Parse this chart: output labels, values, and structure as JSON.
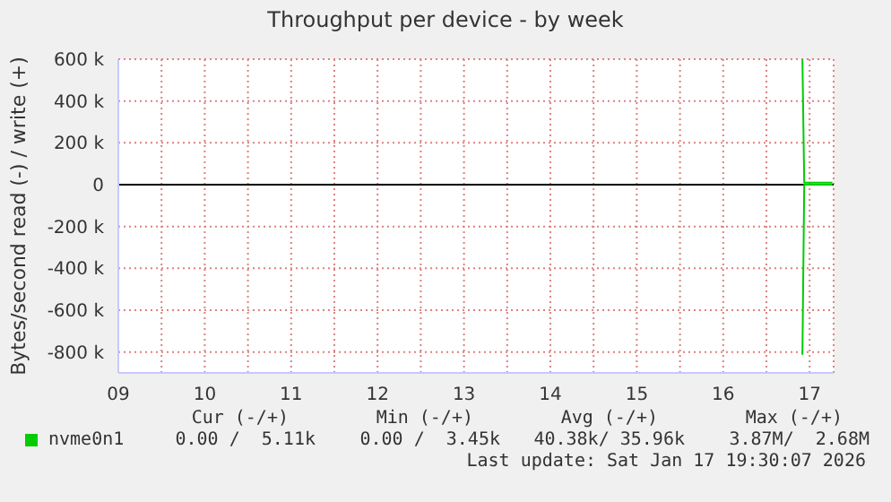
{
  "chart_data": {
    "type": "line",
    "title": "Throughput per device - by week",
    "ylabel": "Bytes/second read (-) / write (+)",
    "xlim": [
      "2026-01-09T00:00",
      "2026-01-17T06:40"
    ],
    "xticks": [
      {
        "value": "2026-01-09",
        "label": "09"
      },
      {
        "value": "2026-01-09T12:00",
        "label": null
      },
      {
        "value": "2026-01-10",
        "label": "10"
      },
      {
        "value": "2026-01-10T12:00",
        "label": null
      },
      {
        "value": "2026-01-11",
        "label": "11"
      },
      {
        "value": "2026-01-11T12:00",
        "label": null
      },
      {
        "value": "2026-01-12",
        "label": "12"
      },
      {
        "value": "2026-01-12T12:00",
        "label": null
      },
      {
        "value": "2026-01-13",
        "label": "13"
      },
      {
        "value": "2026-01-13T12:00",
        "label": null
      },
      {
        "value": "2026-01-14",
        "label": "14"
      },
      {
        "value": "2026-01-14T12:00",
        "label": null
      },
      {
        "value": "2026-01-15",
        "label": "15"
      },
      {
        "value": "2026-01-15T12:00",
        "label": null
      },
      {
        "value": "2026-01-16",
        "label": "16"
      },
      {
        "value": "2026-01-16T12:00",
        "label": null
      },
      {
        "value": "2026-01-17",
        "label": "17"
      }
    ],
    "ylim": [
      -900000,
      600000
    ],
    "yticks": [
      {
        "value": -800000,
        "label": "-800 k"
      },
      {
        "value": -600000,
        "label": "-600 k"
      },
      {
        "value": -400000,
        "label": "-400 k"
      },
      {
        "value": -200000,
        "label": "-200 k"
      },
      0,
      {
        "value": 200000,
        "label": "200 k"
      },
      {
        "value": 400000,
        "label": "400 k"
      },
      {
        "value": 600000,
        "label": "600 k"
      }
    ],
    "series": [
      {
        "name": "nvme0n1",
        "color": "#00cc00",
        "x": [
          "2026-01-16T21:50",
          "2026-01-16T22:00",
          "2026-01-16T22:30",
          "2026-01-17T02:00",
          "2026-01-17T05:30",
          "2026-01-17T06:20"
        ],
        "values": [
          600000,
          600000,
          10000,
          10000,
          10000,
          10000
        ]
      },
      {
        "color": "#00cc00",
        "x": [
          "2026-01-16T21:50",
          "2026-01-16T22:00",
          "2026-01-16T22:30",
          "2026-01-17T06:20"
        ],
        "values": [
          -810000,
          -810000,
          0,
          0
        ]
      }
    ],
    "ref_lines": [
      {
        "axis": "y",
        "value": 0,
        "color": "#000000"
      }
    ],
    "grid": true,
    "legend": "bottom",
    "marker": "none",
    "line_style": "solid",
    "annotations": [
      "Cur (-/+)",
      "Min (-/+)",
      "Avg (-/+)",
      "Max (-/+)",
      "0.00 /  5.11k",
      "0.00 /  3.45k",
      "40.38k/ 35.96k",
      "3.87M/  2.68M",
      "Last update: Sat Jan 17 19:30:07 2026"
    ]
  }
}
